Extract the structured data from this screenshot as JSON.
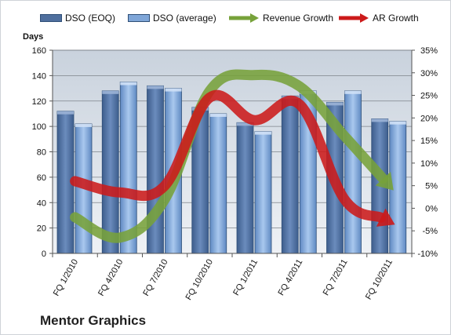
{
  "chart_data": {
    "type": "bar",
    "title": "Mentor Graphics",
    "ylabel": "Days",
    "ylim": [
      0,
      160
    ],
    "y2lim": [
      -10,
      35
    ],
    "yticks": [
      "0",
      "20",
      "40",
      "60",
      "80",
      "100",
      "120",
      "140",
      "160"
    ],
    "y2ticks": [
      "-10%",
      "-5%",
      "0%",
      "5%",
      "10%",
      "15%",
      "20%",
      "25%",
      "30%",
      "35%"
    ],
    "categories": [
      "FQ 1/2010",
      "FQ 4/2010",
      "FQ 7/2010",
      "FQ 10/2010",
      "FQ 1/2011",
      "FQ 4/2011",
      "FQ 7/2011",
      "FQ 10/2011"
    ],
    "grid": true,
    "legend_position": "top",
    "series": [
      {
        "name": "DSO (EOQ)",
        "kind": "bar",
        "axis": "left",
        "color": "#4f6f9e",
        "values": [
          112,
          128,
          132,
          115,
          103,
          124,
          119,
          106
        ]
      },
      {
        "name": "DSO (average)",
        "kind": "bar",
        "axis": "left",
        "color": "#7fa6d8",
        "values": [
          102,
          135,
          130,
          110,
          96,
          128,
          128,
          104
        ]
      },
      {
        "name": "Revenue Growth",
        "kind": "arrow-line",
        "axis": "right",
        "color": "#77a23a",
        "values": [
          -2,
          -6.5,
          2,
          26,
          29.5,
          27,
          16,
          5
        ]
      },
      {
        "name": "AR Growth",
        "kind": "arrow-line",
        "axis": "right",
        "color": "#cc1a1a",
        "values": [
          6,
          3.5,
          5,
          24.5,
          19.5,
          23,
          2,
          -3
        ]
      }
    ]
  }
}
